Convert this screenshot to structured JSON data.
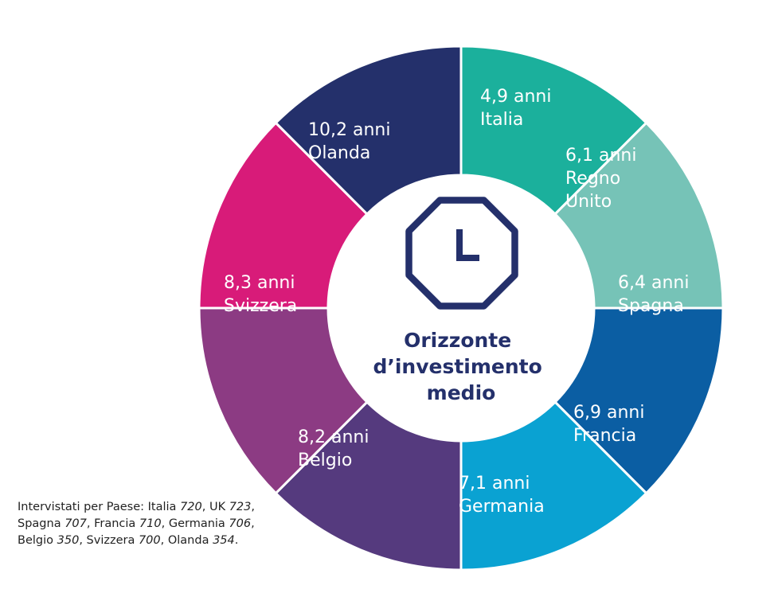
{
  "chart_data": {
    "type": "donut",
    "center_title": [
      "Orizzonte",
      "d’investimento",
      "medio"
    ],
    "segments": [
      {
        "country": "Italia",
        "value": 4.9,
        "value_label": "4,9 anni",
        "label_lines": [
          "4,9 anni",
          "Italia"
        ],
        "color": "#1bb09c"
      },
      {
        "country": "Regno Unito",
        "value": 6.1,
        "value_label": "6,1 anni",
        "label_lines": [
          "6,1 anni",
          "Regno",
          "Unito"
        ],
        "color": "#76c3b7"
      },
      {
        "country": "Spagna",
        "value": 6.4,
        "value_label": "6,4 anni",
        "label_lines": [
          "6,4 anni",
          "Spagna"
        ],
        "color": "#0b5ea3"
      },
      {
        "country": "Francia",
        "value": 6.9,
        "value_label": "6,9 anni",
        "label_lines": [
          "6,9 anni",
          "Francia"
        ],
        "color": "#0aa2d2"
      },
      {
        "country": "Germania",
        "value": 7.1,
        "value_label": "7,1 anni",
        "label_lines": [
          "7,1 anni",
          "Germania"
        ],
        "color": "#553a7e"
      },
      {
        "country": "Belgio",
        "value": 8.2,
        "value_label": "8,2 anni",
        "label_lines": [
          "8,2 anni",
          "Belgio"
        ],
        "color": "#8c3b83"
      },
      {
        "country": "Svizzera",
        "value": 8.3,
        "value_label": "8,3 anni",
        "label_lines": [
          "8,3 anni",
          "Svizzera"
        ],
        "color": "#d81b79"
      },
      {
        "country": "Olanda",
        "value": 10.2,
        "value_label": "10,2 anni",
        "label_lines": [
          "10,2 anni",
          "Olanda"
        ],
        "color": "#24306b"
      }
    ]
  },
  "footnote": {
    "prefix": "Intervistati per Paese:",
    "respondents": [
      {
        "country": "Italia",
        "n": "720"
      },
      {
        "country": "UK",
        "n": "723"
      },
      {
        "country": "Spagna",
        "n": "707"
      },
      {
        "country": "Francia",
        "n": "710"
      },
      {
        "country": "Germania",
        "n": "706"
      },
      {
        "country": "Belgio",
        "n": "350"
      },
      {
        "country": "Svizzera",
        "n": "700"
      },
      {
        "country": "Olanda",
        "n": "354"
      }
    ]
  },
  "icon": {
    "name": "clock-icon",
    "color": "#24306b"
  }
}
